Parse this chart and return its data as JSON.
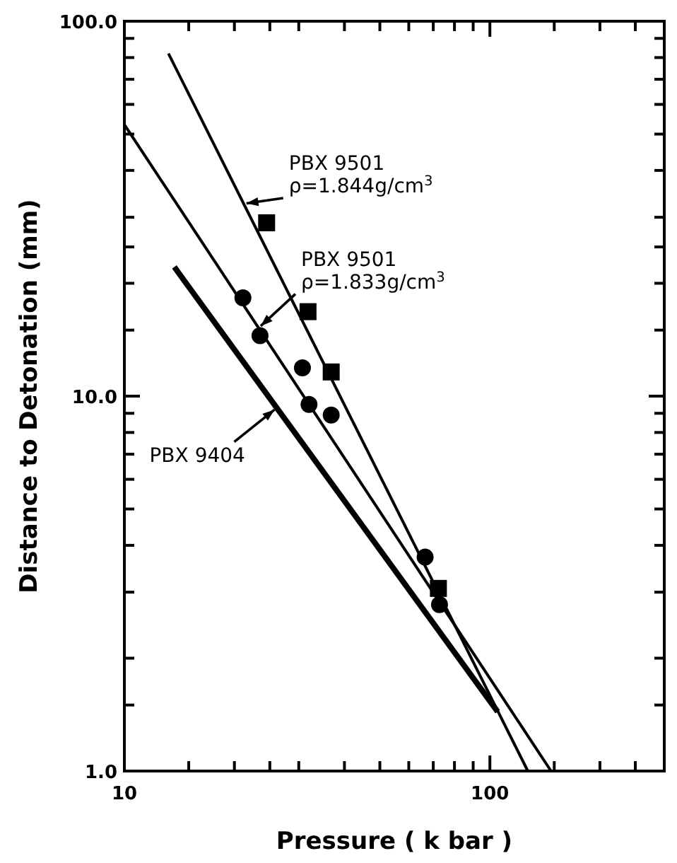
{
  "chart_data": {
    "type": "line",
    "xlabel": "Pressure ( k bar )",
    "ylabel": "Distance to Detonation (mm)",
    "log": "xy",
    "xlim": [
      10,
      300
    ],
    "ylim": [
      1,
      100
    ],
    "xticks": [
      10,
      {
        "value": 15,
        "label": null
      },
      {
        "value": 20,
        "label": null
      },
      {
        "value": 25,
        "label": null
      },
      {
        "value": 30,
        "label": null
      },
      {
        "value": 40,
        "label": null
      },
      {
        "value": 50,
        "label": null
      },
      {
        "value": 60,
        "label": null
      },
      {
        "value": 70,
        "label": null
      },
      {
        "value": 80,
        "label": null
      },
      {
        "value": 90,
        "label": null
      },
      100,
      {
        "value": 150,
        "label": null
      },
      {
        "value": 200,
        "label": null
      },
      {
        "value": 250,
        "label": null
      }
    ],
    "yticks": [
      {
        "value": 1,
        "label": "1.0"
      },
      {
        "value": 1.5,
        "label": null
      },
      {
        "value": 2,
        "label": null
      },
      {
        "value": 3,
        "label": null
      },
      {
        "value": 4,
        "label": null
      },
      {
        "value": 5,
        "label": null
      },
      {
        "value": 6,
        "label": null
      },
      {
        "value": 7,
        "label": null
      },
      {
        "value": 8,
        "label": null
      },
      {
        "value": 9,
        "label": null
      },
      {
        "value": 10,
        "label": "10.0"
      },
      {
        "value": 15,
        "label": null
      },
      {
        "value": 20,
        "label": null
      },
      {
        "value": 25,
        "label": null
      },
      {
        "value": 30,
        "label": null
      },
      {
        "value": 40,
        "label": null
      },
      {
        "value": 50,
        "label": null
      },
      {
        "value": 60,
        "label": null
      },
      {
        "value": 70,
        "label": null
      },
      {
        "value": 80,
        "label": null
      },
      {
        "value": 90,
        "label": null
      },
      {
        "value": 100,
        "label": "100.0"
      }
    ],
    "grid": false,
    "series": [
      {
        "color": "#000000",
        "x": [
          13.2,
          127
        ],
        "values": [
          82,
          1
        ]
      },
      {
        "color": "#000000",
        "x": [
          10,
          147
        ],
        "values": [
          53,
          1
        ]
      },
      {
        "color": "#000000",
        "x": [
          13.7,
          105
        ],
        "values": [
          22.1,
          1.44
        ]
      },
      {
        "type": "scatter",
        "color": "#000000",
        "marker": "square",
        "x": [
          24.5,
          31.8,
          36.8,
          72.3
        ],
        "values": [
          29,
          16.8,
          11.6,
          3.07
        ]
      },
      {
        "type": "scatter",
        "color": "#000000",
        "marker": "circle",
        "x": [
          21.1,
          23.5,
          30.7,
          32,
          36.8,
          66.5,
          72.8
        ],
        "values": [
          18.3,
          14.5,
          11.9,
          9.5,
          8.9,
          3.72,
          2.78
        ]
      }
    ],
    "annotations": [
      {
        "text": "PBX 9501\nρ=1.844g/cm$^{3}$",
        "x": 21.2,
        "y": 32.6
      },
      {
        "text": "PBX 9501\nρ=1.833g/cm$^{3}$",
        "x": 23.3,
        "y": 15.2
      },
      {
        "text": "PBX 9404",
        "x": 26.1,
        "y": 9.3
      }
    ]
  }
}
